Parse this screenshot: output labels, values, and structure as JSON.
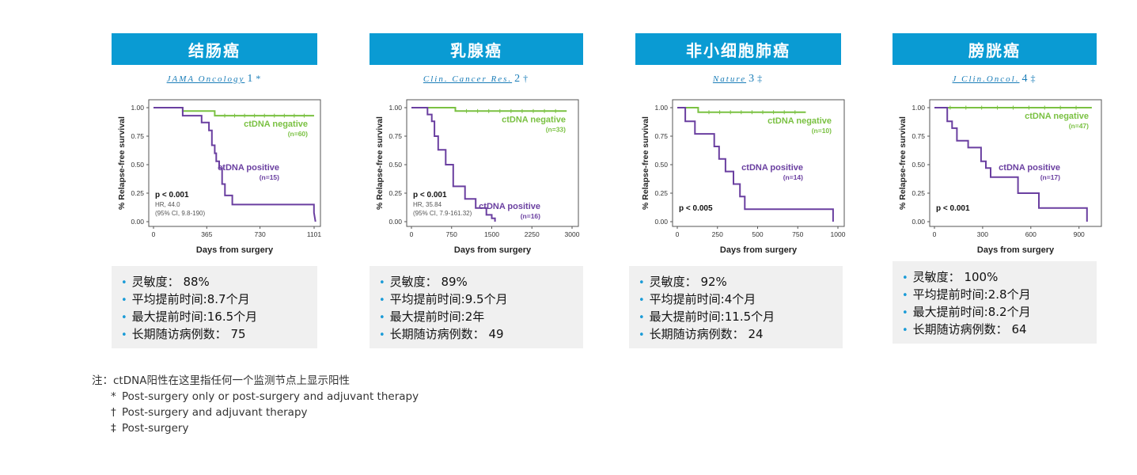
{
  "panels": [
    {
      "title": "结肠癌",
      "citation": {
        "journal": "JAMA Oncology",
        "number": "1",
        "symbol": "*"
      },
      "stats": [
        "灵敏度：  88%",
        "平均提前时间:8.7个月",
        "最大提前时间:16.5个月",
        "长期随访病例数：  75"
      ],
      "chart_data": {
        "type": "line",
        "xlabel": "Days from surgery",
        "ylabel": "% Relapse-free survival",
        "xlim": [
          0,
          1101
        ],
        "ylim": [
          0,
          1
        ],
        "xticks": [
          "0",
          "365",
          "730",
          "1101"
        ],
        "xtick_values": [
          0,
          365,
          730,
          1101
        ],
        "yticks": [
          "0.00",
          "0.25",
          "0.50",
          "0.75",
          "1.00"
        ],
        "ytick_values": [
          0,
          0.25,
          0.5,
          0.75,
          1
        ],
        "pvalue": "p < 0.001",
        "hr_lines": [
          "HR, 44.0",
          "(95% CI, 9.8-190)"
        ],
        "series": [
          {
            "name": "ctDNA negative",
            "n_label": "(n=60)",
            "color": "#7ac142",
            "x": [
              0,
              200,
              200,
              420,
              420,
              1101
            ],
            "y": [
              1,
              1,
              0.97,
              0.97,
              0.93,
              0.93
            ]
          },
          {
            "name": "ctDNA positive",
            "n_label": "(n=15)",
            "color": "#6a3fa0",
            "x": [
              0,
              200,
              200,
              330,
              330,
              380,
              380,
              400,
              400,
              420,
              420,
              430,
              430,
              450,
              450,
              470,
              470,
              490,
              490,
              540,
              540,
              1100,
              1100,
              1110
            ],
            "y": [
              1,
              1,
              0.93,
              0.93,
              0.87,
              0.87,
              0.8,
              0.8,
              0.67,
              0.67,
              0.6,
              0.6,
              0.53,
              0.53,
              0.47,
              0.47,
              0.33,
              0.33,
              0.23,
              0.23,
              0.15,
              0.15,
              0.08,
              0
            ]
          }
        ]
      }
    },
    {
      "title": "乳腺癌",
      "citation": {
        "journal": "Clin. Cancer Res.",
        "number": "2",
        "symbol": "†"
      },
      "stats": [
        "灵敏度：  89%",
        "平均提前时间:9.5个月",
        "最大提前时间:2年",
        "长期随访病例数：  49"
      ],
      "chart_data": {
        "type": "line",
        "xlabel": "Days from surgery",
        "ylabel": "% Relapse-free survival",
        "xlim": [
          0,
          3000
        ],
        "ylim": [
          0,
          1
        ],
        "xticks": [
          "0",
          "750",
          "1500",
          "2250",
          "3000"
        ],
        "xtick_values": [
          0,
          750,
          1500,
          2250,
          3000
        ],
        "yticks": [
          "0.00",
          "0.25",
          "0.50",
          "0.75",
          "1.00"
        ],
        "ytick_values": [
          0,
          0.25,
          0.5,
          0.75,
          1
        ],
        "pvalue": "p < 0.001",
        "hr_lines": [
          "HR, 35.84",
          "(95% CI, 7.9-161.32)"
        ],
        "series": [
          {
            "name": "ctDNA negative",
            "n_label": "(n=33)",
            "color": "#7ac142",
            "x": [
              0,
              820,
              820,
              2900
            ],
            "y": [
              1,
              1,
              0.97,
              0.97
            ]
          },
          {
            "name": "ctDNA positive",
            "n_label": "(n=16)",
            "color": "#6a3fa0",
            "x": [
              0,
              300,
              300,
              380,
              380,
              430,
              430,
              500,
              500,
              640,
              640,
              780,
              780,
              1000,
              1000,
              1200,
              1200,
              1400,
              1400,
              1500,
              1500,
              1560,
              1560
            ],
            "y": [
              1,
              1,
              0.94,
              0.94,
              0.88,
              0.88,
              0.75,
              0.75,
              0.63,
              0.63,
              0.5,
              0.5,
              0.31,
              0.31,
              0.2,
              0.2,
              0.12,
              0.12,
              0.06,
              0.06,
              0.03,
              0.03,
              0
            ]
          }
        ]
      }
    },
    {
      "title": "非小细胞肺癌",
      "citation": {
        "journal": "Nature",
        "number": "3",
        "symbol": "‡"
      },
      "stats": [
        "灵敏度：  92%",
        "平均提前时间:4个月",
        "最大提前时间:11.5个月",
        "长期随访病例数：  24"
      ],
      "chart_data": {
        "type": "line",
        "xlabel": "Days from surgery",
        "ylabel": "% Relapse-free survival",
        "xlim": [
          0,
          1000
        ],
        "ylim": [
          0,
          1
        ],
        "xticks": [
          "0",
          "250",
          "500",
          "750",
          "1000"
        ],
        "xtick_values": [
          0,
          250,
          500,
          750,
          1000
        ],
        "yticks": [
          "0.00",
          "0.25",
          "0.50",
          "0.75",
          "1.00"
        ],
        "ytick_values": [
          0,
          0.25,
          0.5,
          0.75,
          1
        ],
        "pvalue": "p < 0.005",
        "hr_lines": [],
        "series": [
          {
            "name": "ctDNA negative",
            "n_label": "(n=10)",
            "color": "#7ac142",
            "x": [
              0,
              130,
              130,
              800
            ],
            "y": [
              1,
              1,
              0.96,
              0.96
            ]
          },
          {
            "name": "ctDNA positive",
            "n_label": "(n=14)",
            "color": "#6a3fa0",
            "x": [
              0,
              50,
              50,
              110,
              110,
              230,
              230,
              260,
              260,
              300,
              300,
              350,
              350,
              390,
              390,
              420,
              420,
              970,
              970
            ],
            "y": [
              1,
              1,
              0.88,
              0.88,
              0.77,
              0.77,
              0.66,
              0.66,
              0.55,
              0.55,
              0.44,
              0.44,
              0.33,
              0.33,
              0.22,
              0.22,
              0.11,
              0.11,
              0
            ]
          }
        ]
      }
    },
    {
      "title": "膀胱癌",
      "citation": {
        "journal": "J Clin.Oncol.",
        "number": "4",
        "symbol": "‡"
      },
      "stats": [
        "灵敏度：  100%",
        "平均提前时间:2.8个月",
        "最大提前时间:8.2个月",
        "长期随访病例数：  64"
      ],
      "chart_data": {
        "type": "line",
        "xlabel": "Days from surgery",
        "ylabel": "% Relapse-free survival",
        "xlim": [
          0,
          1000
        ],
        "ylim": [
          0,
          1
        ],
        "xticks": [
          "0",
          "300",
          "600",
          "900"
        ],
        "xtick_values": [
          0,
          300,
          600,
          900
        ],
        "yticks": [
          "0.00",
          "0.25",
          "0.50",
          "0.75",
          "1.00"
        ],
        "ytick_values": [
          0,
          0.25,
          0.5,
          0.75,
          1
        ],
        "pvalue": "p < 0.001",
        "hr_lines": [],
        "series": [
          {
            "name": "ctDNA negative",
            "n_label": "(n=47)",
            "color": "#7ac142",
            "x": [
              0,
              980
            ],
            "y": [
              1,
              1
            ]
          },
          {
            "name": "ctDNA positive",
            "n_label": "(n=17)",
            "color": "#6a3fa0",
            "x": [
              0,
              80,
              80,
              110,
              110,
              140,
              140,
              210,
              210,
              290,
              290,
              320,
              320,
              350,
              350,
              520,
              520,
              650,
              650,
              950,
              950
            ],
            "y": [
              1,
              1,
              0.88,
              0.88,
              0.82,
              0.82,
              0.71,
              0.71,
              0.65,
              0.65,
              0.53,
              0.53,
              0.47,
              0.47,
              0.39,
              0.39,
              0.25,
              0.25,
              0.12,
              0.12,
              0
            ]
          }
        ]
      }
    }
  ],
  "notes": {
    "main": "注：ctDNA阳性在这里指任何一个监测节点上显示阳性",
    "items": [
      {
        "symbol": "*",
        "text": "Post-surgery only or post-surgery and adjuvant therapy"
      },
      {
        "symbol": "†",
        "text": "Post-surgery and adjuvant therapy"
      },
      {
        "symbol": "‡",
        "text": "Post-surgery"
      }
    ]
  }
}
